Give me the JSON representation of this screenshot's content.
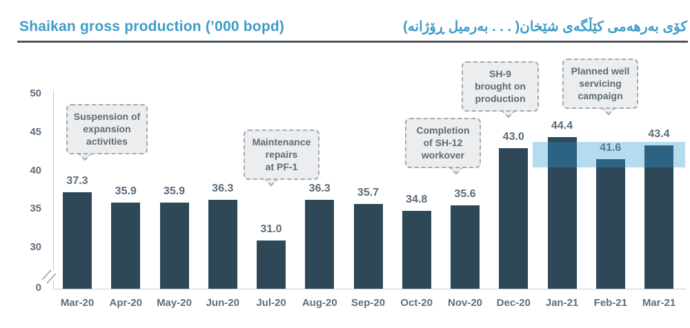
{
  "title": {
    "english": "Shaikan gross production (’000 bopd)",
    "kurdish": "کۆی بەرهەمی کێڵگەی شێخان( . . . بەرمیل ڕۆژانە)"
  },
  "colors": {
    "title": "#3e9bc9",
    "underline": "#50545c",
    "bar": "#2e4858",
    "band": "rgba(43,153,210,0.35)",
    "axis_text": "#5f6d7a",
    "value_label_text": "#5a6a79",
    "axis_line": "#c8ccd2",
    "break_mark": "#aeb3ba",
    "annotation_text": "#5c6b76",
    "annotation_fill": "#ecedef",
    "annotation_border": "#a3a9b0"
  },
  "chart_data": {
    "type": "bar",
    "title": "Shaikan gross production (’000 bopd)",
    "xlabel": "",
    "ylabel": "",
    "unit": "'000 bopd",
    "categories": [
      "Mar-20",
      "Apr-20",
      "May-20",
      "Jun-20",
      "Jul-20",
      "Aug-20",
      "Sep-20",
      "Oct-20",
      "Nov-20",
      "Dec-20",
      "Jan-21",
      "Feb-21",
      "Mar-21"
    ],
    "values": [
      37.3,
      35.9,
      35.9,
      36.3,
      31.0,
      36.3,
      35.7,
      34.8,
      35.6,
      43.0,
      44.4,
      41.6,
      43.4
    ],
    "yticks": [
      0,
      30,
      35,
      40,
      45,
      50
    ],
    "ylim": [
      0,
      50
    ],
    "axis_break_between": [
      0,
      30
    ],
    "grid": false,
    "legend": false,
    "highlight_band": {
      "label": "Planned well servicing campaign",
      "months": [
        "Jan-21",
        "Feb-21",
        "Mar-21"
      ],
      "value_range": [
        40.5,
        43.8
      ]
    },
    "annotations": [
      {
        "text": "Suspension of\nexpansion\nactivities",
        "target": "Mar-20"
      },
      {
        "text": "Maintenance\nrepairs\nat PF-1",
        "target": "Jul-20"
      },
      {
        "text": "Completion\nof SH-12\nworkover",
        "target": "Nov-20"
      },
      {
        "text": "SH-9\nbrought on\nproduction",
        "target": "Dec-20"
      },
      {
        "text": "Planned well\nservicing\ncampaign",
        "target": "Jan-21 to Mar-21"
      }
    ]
  }
}
